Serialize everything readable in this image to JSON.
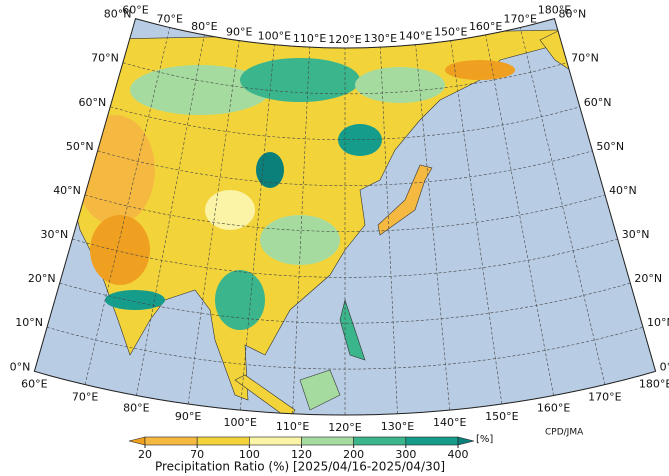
{
  "map": {
    "title": "Precipitation Ratio (%) [2025/04/16-2025/04/30]",
    "unit": "[%]",
    "credit": "CPD/JMA",
    "lon_ticks": [
      {
        "value": 60,
        "label": "60°E"
      },
      {
        "value": 70,
        "label": "70°E"
      },
      {
        "value": 80,
        "label": "80°E"
      },
      {
        "value": 90,
        "label": "90°E"
      },
      {
        "value": 100,
        "label": "100°E"
      },
      {
        "value": 110,
        "label": "110°E"
      },
      {
        "value": 120,
        "label": "120°E"
      },
      {
        "value": 130,
        "label": "130°E"
      },
      {
        "value": 140,
        "label": "140°E"
      },
      {
        "value": 150,
        "label": "150°E"
      },
      {
        "value": 160,
        "label": "160°E"
      },
      {
        "value": 170,
        "label": "170°E"
      },
      {
        "value": 180,
        "label": "180°E"
      }
    ],
    "lat_ticks": [
      {
        "value": 0,
        "label": "0°N"
      },
      {
        "value": 10,
        "label": "10°N"
      },
      {
        "value": 20,
        "label": "20°N"
      },
      {
        "value": 30,
        "label": "30°N"
      },
      {
        "value": 40,
        "label": "40°N"
      },
      {
        "value": 50,
        "label": "50°N"
      },
      {
        "value": 60,
        "label": "60°N"
      },
      {
        "value": 70,
        "label": "70°N"
      },
      {
        "value": 80,
        "label": "80°N"
      }
    ],
    "legend": {
      "ticks": [
        20,
        70,
        100,
        120,
        200,
        300,
        400
      ],
      "colors": [
        "#f0a020",
        "#f5b942",
        "#f2d43a",
        "#fbf3a6",
        "#a6dba0",
        "#3bb58c",
        "#169c8a",
        "#0b7f7a"
      ]
    }
  }
}
